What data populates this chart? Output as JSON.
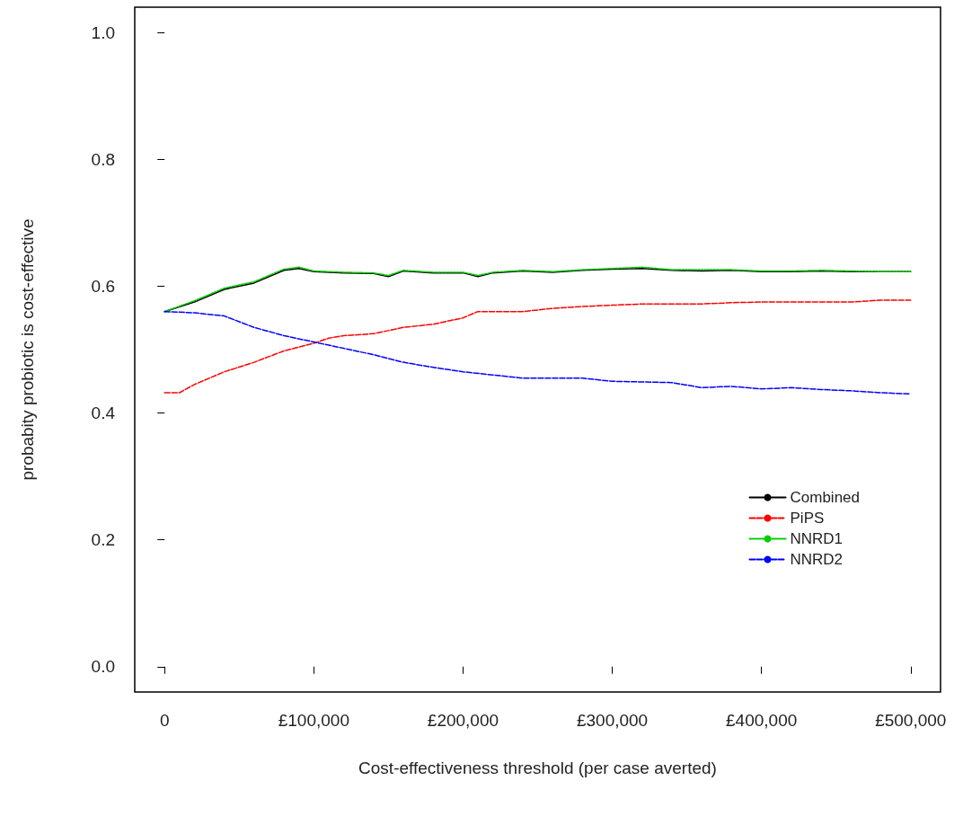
{
  "chart_data": {
    "type": "line",
    "xlabel": "Cost-effectiveness threshold (per case averted)",
    "ylabel": "probabity probiotic is cost-effective",
    "x": [
      0,
      20000,
      40000,
      60000,
      80000,
      90000,
      100000,
      120000,
      140000,
      150000,
      160000,
      180000,
      200000,
      210000,
      220000,
      240000,
      260000,
      280000,
      300000,
      320000,
      340000,
      360000,
      380000,
      400000,
      420000,
      440000,
      460000,
      480000,
      500000
    ],
    "series": [
      {
        "name": "Combined",
        "color": "#000000",
        "line_style": "solid",
        "values": [
          0.56,
          0.575,
          0.595,
          0.605,
          0.625,
          0.628,
          0.623,
          0.621,
          0.62,
          0.615,
          0.624,
          0.621,
          0.621,
          0.615,
          0.621,
          0.624,
          0.622,
          0.625,
          0.627,
          0.628,
          0.625,
          0.624,
          0.625,
          0.623,
          0.623,
          0.624,
          0.623,
          0.623,
          0.623
        ]
      },
      {
        "name": "PiPS",
        "color": "#ff0000",
        "line_style": "dashed",
        "x": [
          0,
          10000,
          20000,
          40000,
          60000,
          80000,
          100000,
          110000,
          120000,
          140000,
          160000,
          180000,
          200000,
          210000,
          240000,
          260000,
          280000,
          300000,
          320000,
          360000,
          380000,
          400000,
          460000,
          480000,
          500000
        ],
        "values": [
          0.432,
          0.432,
          0.445,
          0.465,
          0.48,
          0.498,
          0.51,
          0.518,
          0.522,
          0.525,
          0.535,
          0.54,
          0.55,
          0.56,
          0.56,
          0.565,
          0.568,
          0.57,
          0.572,
          0.572,
          0.574,
          0.575,
          0.575,
          0.578,
          0.578
        ]
      },
      {
        "name": "NNRD1",
        "color": "#00cd00",
        "line_style": "dotted",
        "values": [
          0.56,
          0.577,
          0.597,
          0.607,
          0.627,
          0.63,
          0.624,
          0.622,
          0.621,
          0.617,
          0.625,
          0.622,
          0.622,
          0.617,
          0.622,
          0.625,
          0.623,
          0.626,
          0.628,
          0.63,
          0.626,
          0.626,
          0.626,
          0.624,
          0.624,
          0.625,
          0.624,
          0.623,
          0.623
        ]
      },
      {
        "name": "NNRD2",
        "color": "#0000ff",
        "line_style": "dashed",
        "x": [
          0,
          20000,
          40000,
          60000,
          80000,
          100000,
          120000,
          140000,
          160000,
          180000,
          200000,
          220000,
          240000,
          260000,
          280000,
          300000,
          340000,
          360000,
          380000,
          400000,
          420000,
          440000,
          460000,
          480000,
          500000
        ],
        "values": [
          0.56,
          0.558,
          0.553,
          0.535,
          0.522,
          0.512,
          0.502,
          0.492,
          0.48,
          0.472,
          0.465,
          0.46,
          0.455,
          0.455,
          0.455,
          0.45,
          0.448,
          0.44,
          0.442,
          0.438,
          0.44,
          0.437,
          0.435,
          0.432,
          0.43
        ]
      }
    ],
    "xlim": [
      -20000,
      520000
    ],
    "xticks": [
      0,
      {
        "value": 100000,
        "label": "£100,000"
      },
      {
        "value": 200000,
        "label": "£200,000"
      },
      {
        "value": 300000,
        "label": "£300,000"
      },
      {
        "value": 400000,
        "label": "£400,000"
      },
      {
        "value": 500000,
        "label": "£500,000"
      }
    ],
    "ylim": [
      -0.04,
      1.04
    ],
    "yticks": [
      {
        "value": 0,
        "label": "0.0"
      },
      0.2,
      0.4,
      0.6,
      0.8,
      {
        "value": 1,
        "label": "1.0"
      }
    ],
    "grid": false,
    "legend": "center right",
    "marker": "none"
  }
}
